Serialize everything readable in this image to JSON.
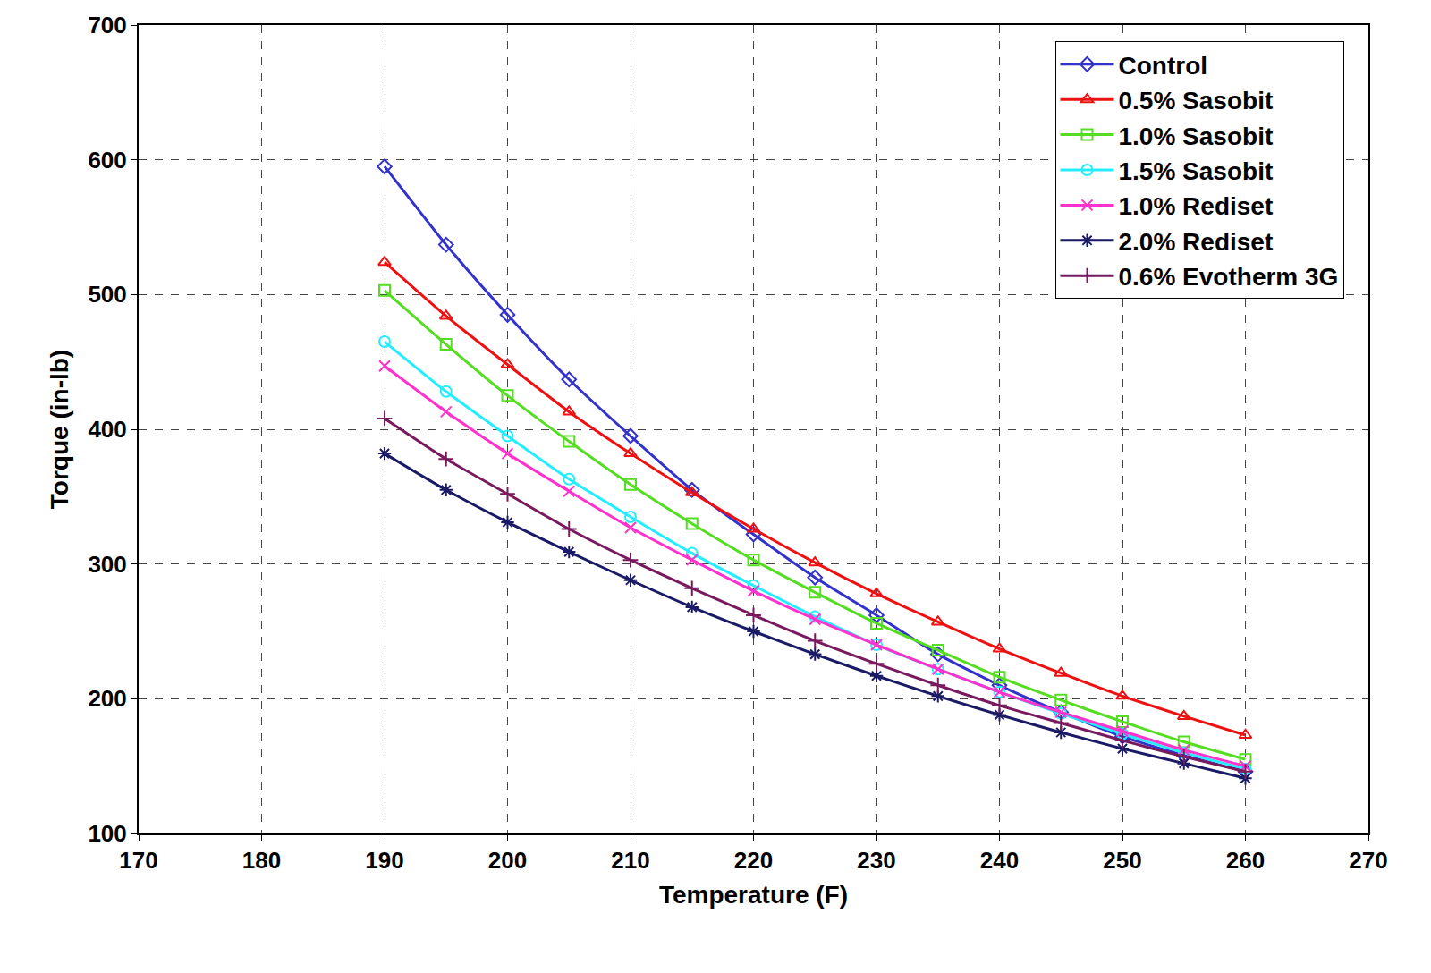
{
  "chart_data": {
    "type": "line",
    "x_label": "Temperature (F)",
    "y_label": "Torque (in-lb)",
    "x": [
      190,
      195,
      200,
      205,
      210,
      215,
      220,
      225,
      230,
      235,
      240,
      245,
      250,
      255,
      260
    ],
    "xlim": [
      170,
      270
    ],
    "xticks": [
      170,
      180,
      190,
      200,
      210,
      220,
      230,
      240,
      250,
      260,
      270
    ],
    "ylim": [
      100,
      700
    ],
    "yticks": [
      100,
      200,
      300,
      400,
      500,
      600,
      700
    ],
    "grid": true,
    "legend": "top-right",
    "series": [
      {
        "name": "Control",
        "color": "#3333cc",
        "marker": "diamond-open",
        "line_style": "solid",
        "values": [
          595,
          537,
          485,
          437,
          395,
          355,
          322,
          290,
          262,
          233,
          210,
          190,
          172,
          158,
          146
        ]
      },
      {
        "name": "0.5% Sasobit",
        "color": "#ee1111",
        "marker": "triangle-up-open",
        "line_style": "solid",
        "values": [
          524,
          484,
          448,
          413,
          382,
          353,
          326,
          301,
          278,
          257,
          237,
          219,
          202,
          187,
          173
        ]
      },
      {
        "name": "1.0% Sasobit",
        "color": "#55dd22",
        "marker": "square-open",
        "line_style": "solid",
        "values": [
          503,
          463,
          425,
          391,
          359,
          330,
          303,
          279,
          256,
          236,
          216,
          199,
          183,
          168,
          155
        ]
      },
      {
        "name": "1.5% Sasobit",
        "color": "#22eeff",
        "marker": "circle-open",
        "line_style": "solid",
        "values": [
          465,
          428,
          395,
          363,
          335,
          308,
          284,
          261,
          240,
          222,
          205,
          189,
          174,
          160,
          148
        ]
      },
      {
        "name": "1.0% Rediset",
        "color": "#ff33cc",
        "marker": "x-thin-open",
        "line_style": "solid",
        "values": [
          447,
          413,
          382,
          354,
          327,
          303,
          280,
          259,
          240,
          222,
          205,
          190,
          176,
          162,
          150
        ]
      },
      {
        "name": "2.0% Rediset",
        "color": "#1a1a66",
        "marker": "asterisk-open",
        "line_style": "solid",
        "values": [
          382,
          355,
          331,
          309,
          288,
          268,
          250,
          233,
          217,
          202,
          188,
          175,
          163,
          152,
          141
        ]
      },
      {
        "name": "0.6% Evotherm 3G",
        "color": "#7a1a5e",
        "marker": "cross-thin-open",
        "line_style": "solid",
        "values": [
          408,
          378,
          352,
          326,
          303,
          282,
          262,
          243,
          226,
          210,
          195,
          182,
          169,
          157,
          146
        ]
      }
    ]
  }
}
